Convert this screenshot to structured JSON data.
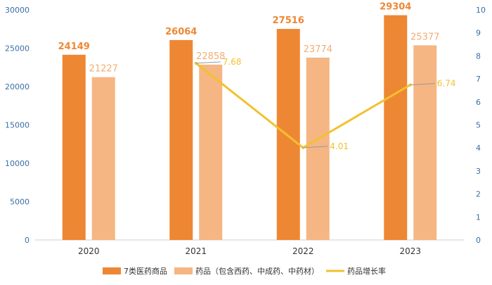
{
  "chart_data": {
    "type": "bar",
    "categories": [
      "2020",
      "2021",
      "2022",
      "2023"
    ],
    "series": [
      {
        "name": "7类医药商品",
        "type": "bar",
        "axis": "left",
        "color": "#ee8733",
        "values": [
          24149,
          26064,
          27516,
          29304
        ]
      },
      {
        "name": "药品（包含西药、中成药、中药材）",
        "type": "bar",
        "axis": "left",
        "color": "#f5b683",
        "values": [
          21227,
          22858,
          23774,
          25377
        ]
      },
      {
        "name": "药品增长率",
        "type": "line",
        "axis": "right",
        "color": "#f2c12e",
        "x": [
          "2021",
          "2022",
          "2023"
        ],
        "values": [
          7.68,
          4.01,
          6.74
        ]
      }
    ],
    "left_axis": {
      "min": 0,
      "max": 30000,
      "step": 5000,
      "ticks": [
        "0",
        "5000",
        "10000",
        "15000",
        "20000",
        "25000",
        "30000"
      ]
    },
    "right_axis": {
      "min": 0,
      "max": 10,
      "step": 1,
      "ticks": [
        "0",
        "1",
        "2",
        "3",
        "4",
        "5",
        "6",
        "7",
        "8",
        "9",
        "10"
      ]
    },
    "grid": false,
    "legend": "bottom"
  }
}
